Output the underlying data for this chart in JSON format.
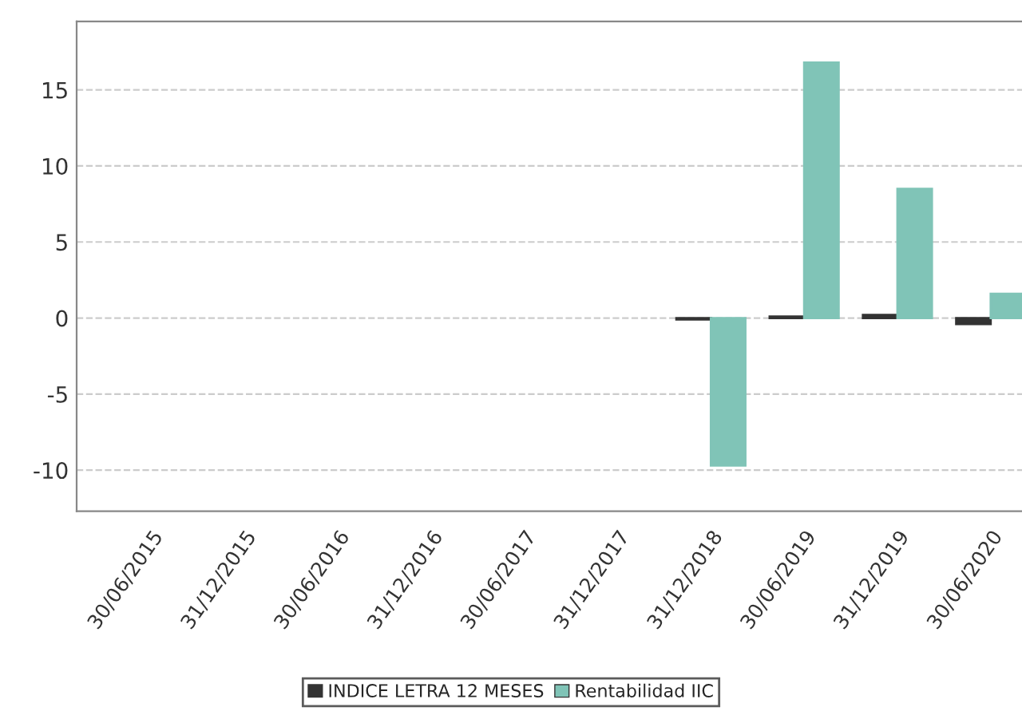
{
  "chart_data": {
    "type": "bar",
    "categories": [
      "30/06/2015",
      "31/12/2015",
      "30/06/2016",
      "31/12/2016",
      "30/06/2017",
      "31/12/2017",
      "31/12/2018",
      "30/06/2019",
      "31/12/2019",
      "30/06/2020"
    ],
    "series": [
      {
        "name": "INDICE LETRA 12 MESES",
        "color": "#333333",
        "values": [
          null,
          null,
          null,
          null,
          null,
          null,
          -0.1,
          0.1,
          0.2,
          -0.4
        ]
      },
      {
        "name": "Rentabilidad IIC",
        "color": "#80c4b7",
        "values": [
          null,
          null,
          null,
          null,
          null,
          null,
          -9.7,
          16.8,
          8.5,
          1.6
        ]
      }
    ],
    "ylim": [
      -12.7,
      19.5
    ],
    "yticks": [
      -10,
      -5,
      0,
      5,
      10,
      15
    ],
    "grid": "y",
    "legend": "bottom"
  }
}
